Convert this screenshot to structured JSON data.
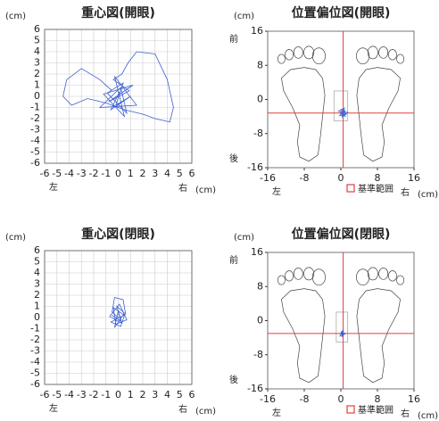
{
  "chart_data": [
    {
      "type": "line",
      "title": "重心図(開眼)",
      "unit_label": "(cm)",
      "left_label": "左",
      "right_label": "右",
      "x_unit": "(cm)",
      "xlim": [
        -6,
        6
      ],
      "ylim": [
        -6,
        6
      ],
      "xticks": [
        -6,
        -5,
        -4,
        -3,
        -2,
        -1,
        0,
        1,
        2,
        3,
        4,
        5,
        6
      ],
      "yticks": [
        6,
        5,
        4,
        3,
        2,
        1,
        0,
        -1,
        -2,
        -3,
        -4,
        -5,
        -6
      ],
      "grid": true,
      "series": [
        {
          "color": "#3b5fd0",
          "x": [
            -0.5,
            -1.5,
            -3,
            -4.2,
            -4.5,
            -3.8,
            -2.5,
            -1,
            0.5,
            2,
            3,
            3.8,
            4.2,
            4.5,
            4,
            3,
            1.5,
            0.8,
            0.3,
            -0.4,
            0.9,
            -0.8,
            1.2,
            -1.2,
            0.5,
            -0.3,
            1.5,
            -1.5,
            0.2,
            0.7,
            -0.9,
            0.4,
            -0.2,
            1.0,
            -0.6,
            0.1
          ],
          "values": [
            0.5,
            1.5,
            2.5,
            1.5,
            0,
            -0.8,
            -0.2,
            -0.6,
            -1.2,
            -1.6,
            -2.0,
            -2.2,
            -2.3,
            -1.0,
            1.5,
            3.8,
            4.0,
            3.0,
            2.0,
            1.5,
            0.5,
            -0.5,
            1.0,
            0.2,
            -1.8,
            1.8,
            -0.8,
            -1.0,
            0.8,
            -1.5,
            0.3,
            1.2,
            -0.8,
            0.0,
            -1.2,
            0.4
          ]
        }
      ]
    },
    {
      "type": "position",
      "title": "位置偏位図(開眼)",
      "unit_label": "(cm)",
      "front_label": "前",
      "back_label": "後",
      "left_label": "左",
      "right_label": "右",
      "x_unit": "(cm)",
      "xlim": [
        -16,
        16
      ],
      "ylim": [
        -16,
        16
      ],
      "xticks": [
        -16,
        -8,
        0,
        8,
        16
      ],
      "yticks": [
        16,
        8,
        0,
        -8,
        -16
      ],
      "grid": false,
      "crosshair": {
        "x": 0.5,
        "y": -3.2,
        "color": "#e04040"
      },
      "reference_range": {
        "xlim": [
          -1.5,
          1.5
        ],
        "ylim": [
          -5,
          2
        ],
        "color": "#aaaaaa"
      },
      "legend": {
        "label": "基準範囲",
        "color": "#e04040"
      },
      "series": [
        {
          "color": "#3b5fd0",
          "x": [
            0.5,
            0,
            1.2,
            -0.3,
            1.0,
            0.2,
            1.5,
            -0.5,
            0.8,
            0.3,
            1.1,
            -0.2,
            0.6,
            0.9,
            0.1
          ],
          "values": [
            -3,
            -2.2,
            -3.5,
            -3.8,
            -2.5,
            -4.2,
            -3.0,
            -2.8,
            -2.0,
            -3.6,
            -4.0,
            -3.2,
            -2.6,
            -3.9,
            -3.1
          ]
        }
      ]
    },
    {
      "type": "line",
      "title": "重心図(閉眼)",
      "unit_label": "(cm)",
      "left_label": "左",
      "right_label": "右",
      "x_unit": "(cm)",
      "xlim": [
        -6,
        6
      ],
      "ylim": [
        -6,
        6
      ],
      "xticks": [
        -6,
        -5,
        -4,
        -3,
        -2,
        -1,
        0,
        1,
        2,
        3,
        4,
        5,
        6
      ],
      "yticks": [
        6,
        5,
        4,
        3,
        2,
        1,
        0,
        -1,
        -2,
        -3,
        -4,
        -5,
        -6
      ],
      "grid": true,
      "series": [
        {
          "color": "#3b5fd0",
          "x": [
            0,
            -0.5,
            -0.3,
            0.4,
            0.6,
            -0.6,
            0.2,
            0.5,
            -0.4,
            -0.2,
            0.7,
            0.1,
            -0.7,
            0.3,
            0.0,
            -0.3,
            0.5,
            -0.1,
            0.2,
            -0.5
          ],
          "values": [
            0,
            0.5,
            1.8,
            1.6,
            0.3,
            -0.4,
            -0.8,
            0.2,
            0.9,
            -0.6,
            -0.2,
            1.2,
            0.1,
            -0.5,
            0.6,
            -0.9,
            0.4,
            1.0,
            -0.3,
            0.2
          ]
        }
      ]
    },
    {
      "type": "position",
      "title": "位置偏位図(閉眼)",
      "unit_label": "(cm)",
      "front_label": "前",
      "back_label": "後",
      "left_label": "左",
      "right_label": "右",
      "x_unit": "(cm)",
      "xlim": [
        -16,
        16
      ],
      "ylim": [
        -16,
        16
      ],
      "xticks": [
        -16,
        -8,
        0,
        8,
        16
      ],
      "yticks": [
        16,
        8,
        0,
        -8,
        -16
      ],
      "grid": false,
      "crosshair": {
        "x": 0.5,
        "y": -3,
        "color": "#e04040"
      },
      "reference_range": {
        "xlim": [
          -1,
          1.5
        ],
        "ylim": [
          -5,
          2
        ],
        "color": "#aaaaaa"
      },
      "legend": {
        "label": "基準範囲",
        "color": "#e04040"
      },
      "series": [
        {
          "color": "#3b5fd0",
          "x": [
            0.3,
            0,
            0.8,
            -0.2,
            0.6,
            0.2,
            0.9,
            -0.1,
            0.5,
            0.4,
            0.1,
            0.7
          ],
          "values": [
            -3,
            -2.5,
            -3.2,
            -3.6,
            -2.4,
            -3.8,
            -2.9,
            -3.1,
            -2.2,
            -3.5,
            -2.8,
            -3.3
          ]
        }
      ]
    }
  ]
}
